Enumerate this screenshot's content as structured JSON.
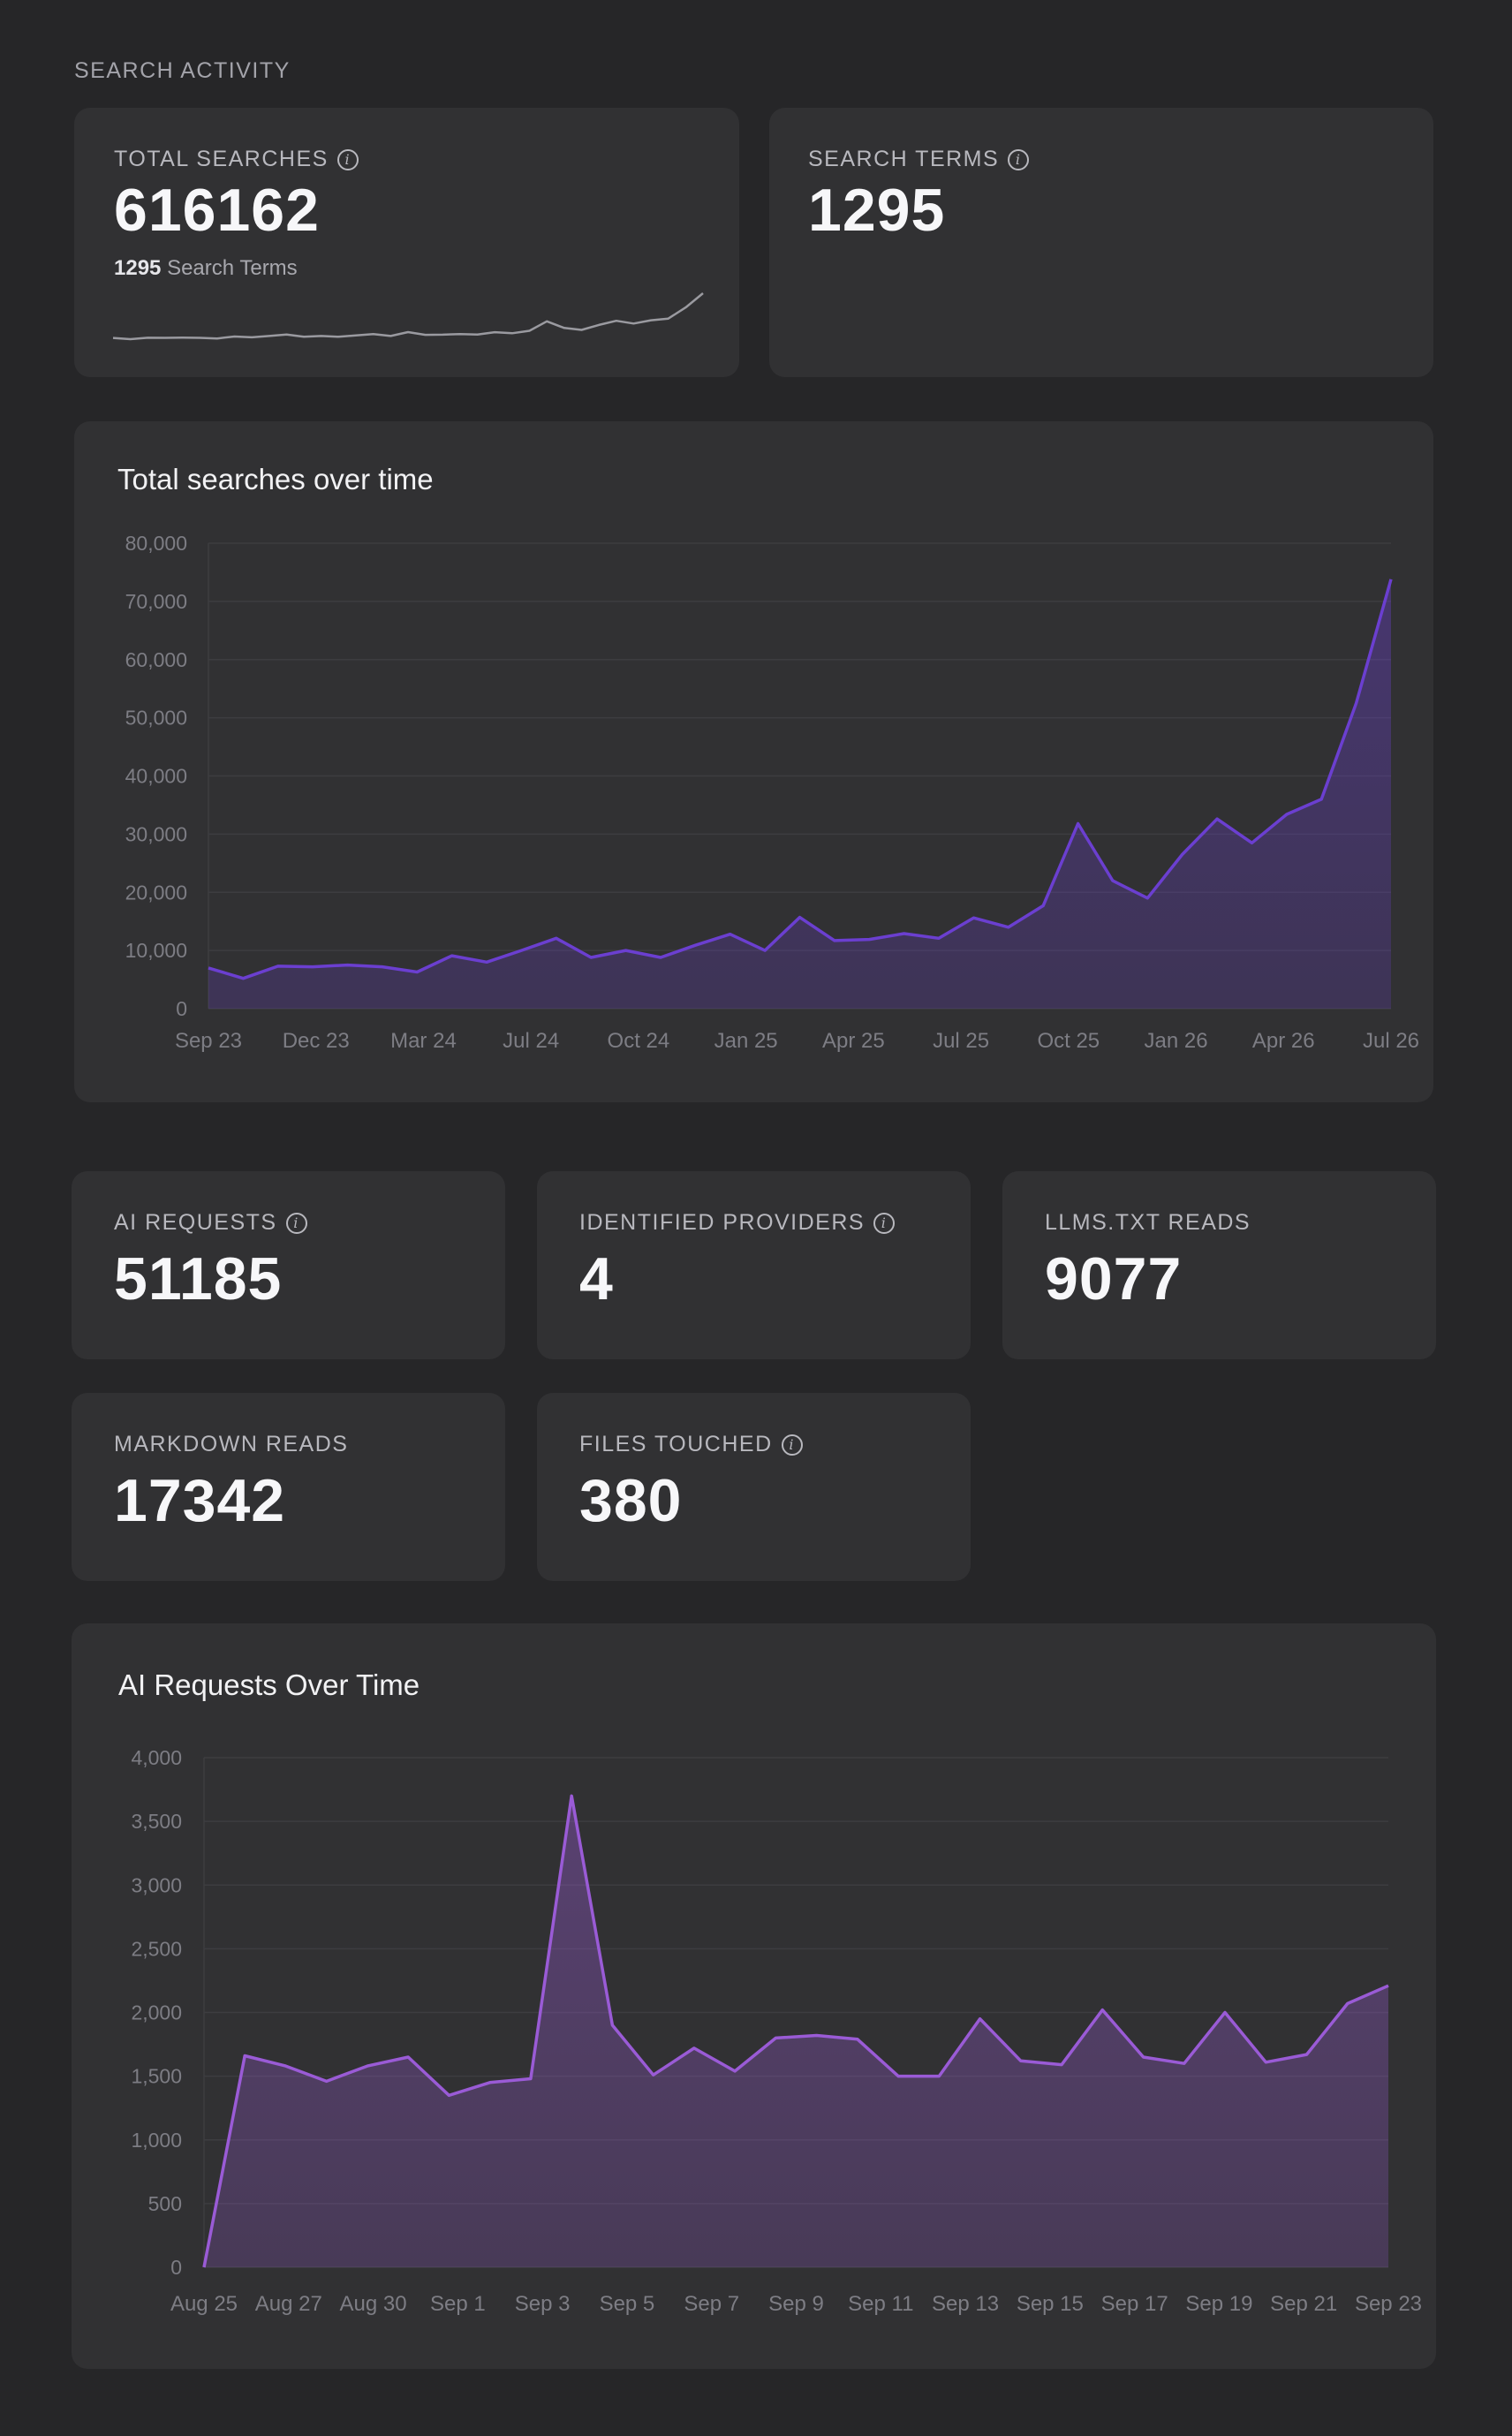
{
  "section": {
    "title": "SEARCH ACTIVITY"
  },
  "colors": {
    "background": "#262628",
    "card": "#313133",
    "accent": "#6b3fd0",
    "accent_light": "#9a5bd6",
    "sparkline": "#9a9aa0"
  },
  "search_cards": [
    {
      "label": "TOTAL SEARCHES",
      "value": "616162",
      "has_info": true,
      "sub_value": "1295",
      "sub_label": "Search Terms"
    },
    {
      "label": "SEARCH TERMS",
      "value": "1295",
      "has_info": true
    }
  ],
  "ai_cards": [
    {
      "label": "AI REQUESTS",
      "value": "51185",
      "has_info": true
    },
    {
      "label": "IDENTIFIED PROVIDERS",
      "value": "4",
      "has_info": true
    },
    {
      "label": "LLMS.TXT READS",
      "value": "9077",
      "has_info": false
    },
    {
      "label": "MARKDOWN READS",
      "value": "17342",
      "has_info": false
    },
    {
      "label": "FILES TOUCHED",
      "value": "380",
      "has_info": true
    }
  ],
  "chart_data": [
    {
      "type": "area",
      "title": "Total searches over time",
      "xlabel": "",
      "ylabel": "",
      "ylim": [
        0,
        80000
      ],
      "y_ticks": [
        0,
        10000,
        20000,
        30000,
        40000,
        50000,
        60000,
        70000,
        80000
      ],
      "y_tick_labels": [
        "0",
        "10,000",
        "20,000",
        "30,000",
        "40,000",
        "50,000",
        "60,000",
        "70,000",
        "80,000"
      ],
      "x_tick_labels": [
        "Sep 23",
        "Dec 23",
        "Mar 24",
        "Jul 24",
        "Oct 24",
        "Jan 25",
        "Apr 25",
        "Jul 25",
        "Oct 25",
        "Jan 26",
        "Apr 26",
        "Jul 26"
      ],
      "grid": true,
      "series": [
        {
          "values": [
            7000,
            5200,
            7300,
            7200,
            7500,
            7200,
            6300,
            9100,
            8000,
            10000,
            12100,
            8800,
            10000,
            8800,
            10900,
            12800,
            10000,
            15700,
            11700,
            11900,
            12900,
            12100,
            15600,
            14000,
            17700,
            31800,
            22000,
            19000,
            26500,
            32600,
            28500,
            33400,
            36000,
            52500,
            73800
          ]
        }
      ]
    },
    {
      "type": "area",
      "title": "AI Requests Over Time",
      "xlabel": "",
      "ylabel": "",
      "ylim": [
        0,
        4000
      ],
      "y_ticks": [
        0,
        500,
        1000,
        1500,
        2000,
        2500,
        3000,
        3500,
        4000
      ],
      "y_tick_labels": [
        "0",
        "500",
        "1,000",
        "1,500",
        "2,000",
        "2,500",
        "3,000",
        "3,500",
        "4,000"
      ],
      "x_tick_labels": [
        "Aug 25",
        "Aug 27",
        "Aug 30",
        "Sep 1",
        "Sep 3",
        "Sep 5",
        "Sep 7",
        "Sep 9",
        "Sep 11",
        "Sep 13",
        "Sep 15",
        "Sep 17",
        "Sep 19",
        "Sep 21",
        "Sep 23"
      ],
      "grid": true,
      "series": [
        {
          "values": [
            0,
            1660,
            1580,
            1460,
            1580,
            1650,
            1350,
            1450,
            1480,
            3700,
            1900,
            1510,
            1720,
            1540,
            1800,
            1820,
            1790,
            1500,
            1500,
            1950,
            1620,
            1590,
            2020,
            1650,
            1600,
            2000,
            1610,
            1670,
            2070,
            2210
          ]
        }
      ]
    }
  ]
}
